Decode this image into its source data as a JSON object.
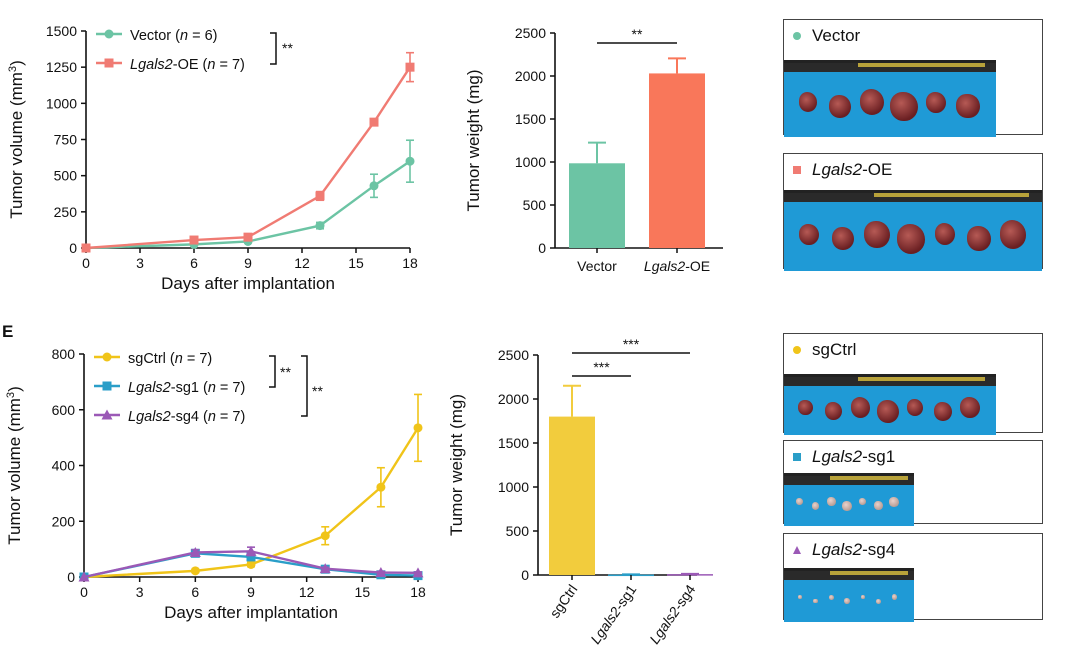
{
  "panel_labels": {
    "top": "",
    "bottom": "E"
  },
  "colors": {
    "vector": "#6cc4a4",
    "oe": "#f07b73",
    "oe_bar": "#f9775a",
    "sgctrl": "#f0c419",
    "sg1": "#2a9ec8",
    "sg4": "#9b59b6",
    "sgctrl_bar": "#f2cc3d"
  },
  "photos": {
    "vector": {
      "label": "Vector",
      "icon": "circle-marker",
      "count": 6
    },
    "oe": {
      "label_italic": "Lgals2",
      "label_rest": "-OE",
      "icon": "square-marker",
      "count": 7
    },
    "sgctrl": {
      "label": "sgCtrl",
      "icon": "circle-marker",
      "count": 7
    },
    "sg1": {
      "label_italic": "Lgals2",
      "label_rest": "-sg1",
      "icon": "square-marker",
      "count": 7
    },
    "sg4": {
      "label_italic": "Lgals2",
      "label_rest": "-sg4",
      "icon": "triangle-marker",
      "count": 7
    }
  },
  "chart_data": [
    {
      "id": "top-line",
      "type": "line",
      "xlabel": "Days after implantation",
      "ylabel": "Tumor volume (mm³)",
      "ylabel_parts": [
        "Tumor volume (mm",
        "3",
        ")"
      ],
      "x": [
        0,
        6,
        9,
        13,
        16,
        18
      ],
      "xticks": [
        "0",
        "3",
        "6",
        "9",
        "12",
        "15",
        "18"
      ],
      "xlim": [
        0,
        18
      ],
      "ylim": [
        0,
        1500
      ],
      "yticks": [
        "0",
        "250",
        "500",
        "750",
        "1000",
        "1250",
        "1500"
      ],
      "series": [
        {
          "name": "Vector (n = 6)",
          "name_parts": [
            "Vector (",
            "n",
            " = 6)"
          ],
          "marker": "circle",
          "color": "#6cc4a4",
          "values": [
            0,
            25,
            45,
            155,
            430,
            600
          ],
          "errors": [
            0,
            6,
            10,
            22,
            80,
            145
          ]
        },
        {
          "name": "Lgals2-OE (n = 7)",
          "name_parts": [
            "Lgals2",
            "-OE (",
            "n",
            " = 7)"
          ],
          "marker": "square",
          "color": "#f07b73",
          "values": [
            0,
            55,
            75,
            360,
            870,
            1250
          ],
          "errors": [
            0,
            10,
            12,
            30,
            20,
            100
          ]
        }
      ],
      "annotations": [
        "**"
      ]
    },
    {
      "id": "top-bar",
      "type": "bar",
      "ylabel": "Tumor weight (mg)",
      "categories": [
        "Vector",
        "Lgals2-OE"
      ],
      "category_parts": [
        [
          "Vector"
        ],
        [
          "Lgals2",
          "-OE"
        ]
      ],
      "values": [
        985,
        2030
      ],
      "errors": [
        240,
        175
      ],
      "colors": [
        "#6cc4a4",
        "#f9775a"
      ],
      "ylim": [
        0,
        2500
      ],
      "yticks": [
        "0",
        "500",
        "1000",
        "1500",
        "2000",
        "2500"
      ],
      "annotations": [
        "**"
      ]
    },
    {
      "id": "bottom-line",
      "type": "line",
      "xlabel": "Days after implantation",
      "ylabel": "Tumor volume (mm³)",
      "ylabel_parts": [
        "Tumor volume (mm",
        "3",
        ")"
      ],
      "x": [
        0,
        6,
        9,
        13,
        16,
        18
      ],
      "xticks": [
        "0",
        "3",
        "6",
        "9",
        "12",
        "15",
        "18"
      ],
      "xlim": [
        0,
        18
      ],
      "ylim": [
        0,
        800
      ],
      "yticks": [
        "0",
        "200",
        "400",
        "600",
        "800"
      ],
      "series": [
        {
          "name": "sgCtrl (n = 7)",
          "name_parts": [
            "sgCtrl (",
            "n",
            " = 7)"
          ],
          "marker": "circle",
          "color": "#f0c419",
          "values": [
            0,
            22,
            45,
            148,
            322,
            535
          ],
          "errors": [
            0,
            6,
            8,
            32,
            70,
            120
          ]
        },
        {
          "name": "Lgals2-sg1 (n = 7)",
          "name_parts": [
            "Lgals2",
            "-sg1 (",
            "n",
            " = 7)"
          ],
          "marker": "square",
          "color": "#2a9ec8",
          "values": [
            0,
            85,
            72,
            28,
            8,
            5
          ],
          "errors": [
            0,
            8,
            8,
            4,
            3,
            2
          ]
        },
        {
          "name": "Lgals2-sg4 (n = 7)",
          "name_parts": [
            "Lgals2",
            "-sg4 (",
            "n",
            " = 7)"
          ],
          "marker": "triangle",
          "color": "#9b59b6",
          "values": [
            0,
            88,
            92,
            30,
            16,
            15
          ],
          "errors": [
            0,
            10,
            15,
            5,
            4,
            3
          ]
        }
      ],
      "annotations": [
        "**",
        "**"
      ]
    },
    {
      "id": "bottom-bar",
      "type": "bar",
      "ylabel": "Tumor weight (mg)",
      "categories": [
        "sgCtrl",
        "Lgals2-sg1",
        "Lgals2-sg4"
      ],
      "category_parts": [
        [
          "sgCtrl"
        ],
        [
          "Lgals2",
          "-sg1"
        ],
        [
          "Lgals2",
          "-sg4"
        ]
      ],
      "values": [
        1800,
        5,
        10
      ],
      "errors": [
        350,
        2,
        3
      ],
      "colors": [
        "#f2cc3d",
        "#2a9ec8",
        "#9b59b6"
      ],
      "ylim": [
        0,
        2500
      ],
      "yticks": [
        "0",
        "500",
        "1000",
        "1500",
        "2000",
        "2500"
      ],
      "annotations": [
        "***",
        "***"
      ]
    }
  ]
}
